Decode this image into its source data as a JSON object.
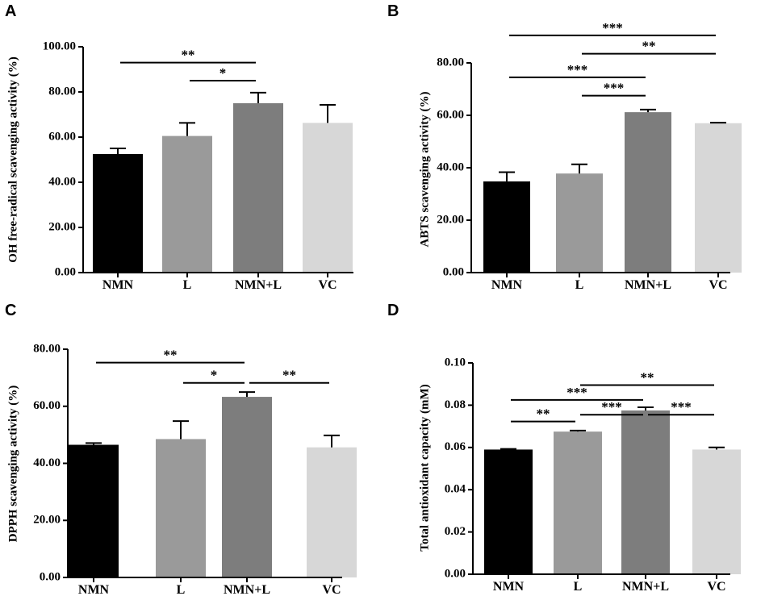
{
  "chart_data": [
    {
      "panel": "A",
      "type": "bar",
      "categories": [
        "NMN",
        "L",
        "NMN+L",
        "VC"
      ],
      "values": [
        52.5,
        60.5,
        75.0,
        66.3
      ],
      "errors": [
        2.5,
        5.8,
        4.7,
        8.0
      ],
      "colors": [
        "#000000",
        "#9a9a9a",
        "#7d7d7d",
        "#d7d7d7"
      ],
      "ylabel": "OH free-radical scavenging activity (%)",
      "ylim": [
        0,
        100
      ],
      "yticks": [
        0,
        20,
        40,
        60,
        80,
        100
      ],
      "ytick_labels": [
        "0.00",
        "20.00",
        "40.00",
        "60.00",
        "80.00",
        "100.00"
      ],
      "brackets": [
        {
          "from": 0,
          "to": 2,
          "label": "**",
          "y": 93
        },
        {
          "from": 1,
          "to": 2,
          "label": "*",
          "y": 85
        }
      ]
    },
    {
      "panel": "B",
      "type": "bar",
      "categories": [
        "NMN",
        "L",
        "NMN+L",
        "VC"
      ],
      "values": [
        34.8,
        37.8,
        61.2,
        57.0
      ],
      "errors": [
        3.5,
        3.5,
        1.0,
        0.2
      ],
      "colors": [
        "#000000",
        "#9a9a9a",
        "#7d7d7d",
        "#d7d7d7"
      ],
      "ylabel": "ABTS scavenging activity (%)",
      "ylim": [
        0,
        80
      ],
      "yticks": [
        0,
        20,
        40,
        60,
        80
      ],
      "ytick_labels": [
        "0.00",
        "20.00",
        "40.00",
        "60.00",
        "80.00"
      ],
      "brackets": [
        {
          "from": 0,
          "to": 3,
          "label": "***",
          "y": 90.5
        },
        {
          "from": 1,
          "to": 3,
          "label": "**",
          "y": 83.5
        },
        {
          "from": 0,
          "to": 2,
          "label": "***",
          "y": 74.5
        },
        {
          "from": 1,
          "to": 2,
          "label": "***",
          "y": 67.5
        }
      ]
    },
    {
      "panel": "C",
      "type": "bar",
      "categories": [
        "NMN",
        "L",
        "NMN+L",
        "VC"
      ],
      "values": [
        46.5,
        48.5,
        63.3,
        45.6
      ],
      "errors": [
        0.6,
        6.3,
        1.7,
        4.2
      ],
      "colors": [
        "#000000",
        "#9a9a9a",
        "#7d7d7d",
        "#d7d7d7"
      ],
      "ylabel": "DPPH scavenging activity (%)",
      "ylim": [
        0,
        80
      ],
      "yticks": [
        0,
        20,
        40,
        60,
        80
      ],
      "ytick_labels": [
        "0.00",
        "20.00",
        "40.00",
        "60.00",
        "80.00"
      ],
      "brackets": [
        {
          "from": 0,
          "to": 2,
          "label": "**",
          "y": 75.3
        },
        {
          "from": 1,
          "to": 2,
          "label": "*",
          "y": 68.2
        },
        {
          "from": 2,
          "to": 3,
          "label": "**",
          "y": 68.2
        }
      ]
    },
    {
      "panel": "D",
      "type": "bar",
      "categories": [
        "NMN",
        "L",
        "NMN+L",
        "VC"
      ],
      "values": [
        0.059,
        0.0675,
        0.0775,
        0.059
      ],
      "errors": [
        0.0003,
        0.0005,
        0.0015,
        0.001
      ],
      "colors": [
        "#000000",
        "#9a9a9a",
        "#7d7d7d",
        "#d7d7d7"
      ],
      "ylabel": "Total antioxidant capacity (mM)",
      "ylim": [
        0,
        0.1
      ],
      "yticks": [
        0,
        0.02,
        0.04,
        0.06,
        0.08,
        0.1
      ],
      "ytick_labels": [
        "0.00",
        "0.02",
        "0.04",
        "0.06",
        "0.08",
        "0.10"
      ],
      "brackets": [
        {
          "from": 1,
          "to": 3,
          "label": "**",
          "y": 0.0895
        },
        {
          "from": 0,
          "to": 2,
          "label": "***",
          "y": 0.0825
        },
        {
          "from": 1,
          "to": 2,
          "label": "***",
          "y": 0.0755
        },
        {
          "from": 2,
          "to": 3,
          "label": "***",
          "y": 0.0755
        },
        {
          "from": 0,
          "to": 1,
          "label": "**",
          "y": 0.0723
        }
      ]
    }
  ]
}
